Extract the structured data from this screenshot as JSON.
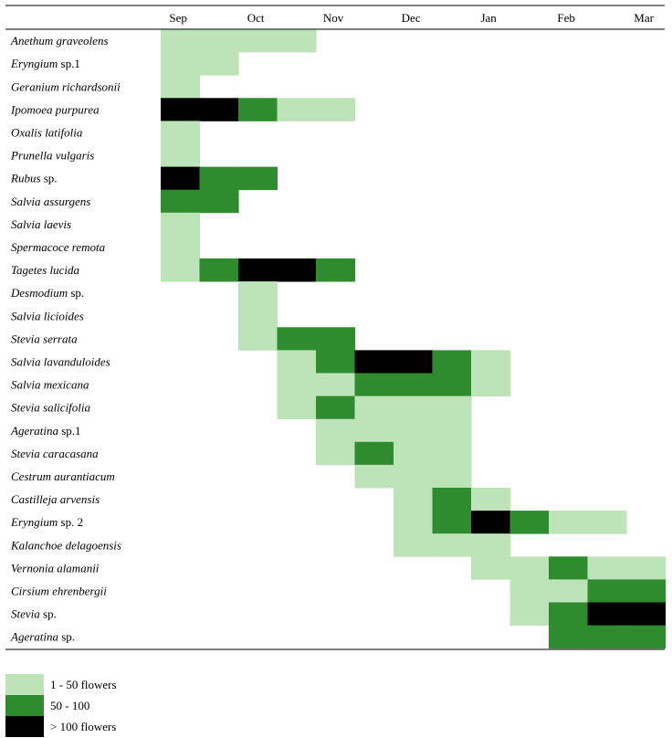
{
  "chart_data": {
    "type": "heatmap",
    "months": [
      "Sep",
      "Oct",
      "Nov",
      "Dec",
      "Jan",
      "Feb",
      "Mar"
    ],
    "levels": {
      "1": {
        "label": "1 - 50 flowers",
        "color": "#bde4b8"
      },
      "2": {
        "label": "50 - 100",
        "color": "#2e8b2e"
      },
      "3": {
        "label": "> 100 flowers",
        "color": "#000000"
      }
    },
    "periods_per_month": 2,
    "species": [
      {
        "italic": "Anethum graveolens",
        "suffix": "",
        "periods": [
          1,
          1,
          1,
          1,
          0,
          0,
          0,
          0,
          0,
          0,
          0,
          0,
          0,
          0
        ]
      },
      {
        "italic": "Eryngium",
        "suffix": " sp.1",
        "periods": [
          1,
          1,
          0,
          0,
          0,
          0,
          0,
          0,
          0,
          0,
          0,
          0,
          0,
          0
        ]
      },
      {
        "italic": "Geranium richardsonii",
        "suffix": "",
        "periods": [
          1,
          0,
          0,
          0,
          0,
          0,
          0,
          0,
          0,
          0,
          0,
          0,
          0,
          0
        ]
      },
      {
        "italic": "Ipomoea purpurea",
        "suffix": "",
        "periods": [
          3,
          3,
          2,
          1,
          1,
          0,
          0,
          0,
          0,
          0,
          0,
          0,
          0,
          0
        ]
      },
      {
        "italic": "Oxalis latifolia",
        "suffix": "",
        "periods": [
          1,
          0,
          0,
          0,
          0,
          0,
          0,
          0,
          0,
          0,
          0,
          0,
          0,
          0
        ]
      },
      {
        "italic": "Prunella vulgaris",
        "suffix": "",
        "periods": [
          1,
          0,
          0,
          0,
          0,
          0,
          0,
          0,
          0,
          0,
          0,
          0,
          0,
          0
        ]
      },
      {
        "italic": "Rubus",
        "suffix": " sp.",
        "periods": [
          3,
          2,
          2,
          0,
          0,
          0,
          0,
          0,
          0,
          0,
          0,
          0,
          0,
          0
        ]
      },
      {
        "italic": "Salvia assurgens",
        "suffix": "",
        "periods": [
          2,
          2,
          0,
          0,
          0,
          0,
          0,
          0,
          0,
          0,
          0,
          0,
          0,
          0
        ]
      },
      {
        "italic": "Salvia laevis",
        "suffix": "",
        "periods": [
          1,
          0,
          0,
          0,
          0,
          0,
          0,
          0,
          0,
          0,
          0,
          0,
          0,
          0
        ]
      },
      {
        "italic": "Spermacoce remota",
        "suffix": "",
        "periods": [
          1,
          0,
          0,
          0,
          0,
          0,
          0,
          0,
          0,
          0,
          0,
          0,
          0,
          0
        ]
      },
      {
        "italic": "Tagetes lucida",
        "suffix": "",
        "periods": [
          1,
          2,
          3,
          3,
          2,
          0,
          0,
          0,
          0,
          0,
          0,
          0,
          0,
          0
        ]
      },
      {
        "italic": "Desmodium",
        "suffix": " sp.",
        "periods": [
          0,
          0,
          1,
          0,
          0,
          0,
          0,
          0,
          0,
          0,
          0,
          0,
          0,
          0
        ]
      },
      {
        "italic": "Salvia licioides",
        "suffix": "",
        "periods": [
          0,
          0,
          1,
          0,
          0,
          0,
          0,
          0,
          0,
          0,
          0,
          0,
          0,
          0
        ]
      },
      {
        "italic": "Stevia serrata",
        "suffix": "",
        "periods": [
          0,
          0,
          1,
          2,
          2,
          0,
          0,
          0,
          0,
          0,
          0,
          0,
          0,
          0
        ]
      },
      {
        "italic": "Salvia lavanduloides",
        "suffix": "",
        "periods": [
          0,
          0,
          0,
          1,
          2,
          3,
          3,
          2,
          1,
          0,
          0,
          0,
          0,
          0
        ]
      },
      {
        "italic": "Salvia mexicana",
        "suffix": "",
        "periods": [
          0,
          0,
          0,
          1,
          1,
          2,
          2,
          2,
          1,
          0,
          0,
          0,
          0,
          0
        ]
      },
      {
        "italic": "Stevia salicifolia",
        "suffix": "",
        "periods": [
          0,
          0,
          0,
          1,
          2,
          1,
          1,
          1,
          0,
          0,
          0,
          0,
          0,
          0
        ]
      },
      {
        "italic": "Ageratina",
        "suffix": " sp.1",
        "periods": [
          0,
          0,
          0,
          0,
          1,
          1,
          1,
          1,
          0,
          0,
          0,
          0,
          0,
          0
        ]
      },
      {
        "italic": "Stevia caracasana",
        "suffix": "",
        "periods": [
          0,
          0,
          0,
          0,
          1,
          2,
          1,
          1,
          0,
          0,
          0,
          0,
          0,
          0
        ]
      },
      {
        "italic": "Cestrum aurantiacum",
        "suffix": "",
        "periods": [
          0,
          0,
          0,
          0,
          0,
          1,
          1,
          1,
          0,
          0,
          0,
          0,
          0,
          0
        ]
      },
      {
        "italic": "Castilleja arvensis",
        "suffix": "",
        "periods": [
          0,
          0,
          0,
          0,
          0,
          0,
          1,
          2,
          1,
          0,
          0,
          0,
          0,
          0
        ]
      },
      {
        "italic": "Eryngium",
        "suffix": " sp. 2",
        "periods": [
          0,
          0,
          0,
          0,
          0,
          0,
          1,
          2,
          3,
          2,
          1,
          1,
          0,
          0
        ]
      },
      {
        "italic": "Kalanchoe delagoensis",
        "suffix": "",
        "periods": [
          0,
          0,
          0,
          0,
          0,
          0,
          1,
          1,
          1,
          0,
          0,
          0,
          0,
          0
        ]
      },
      {
        "italic": "Vernonia alamanii",
        "suffix": "",
        "periods": [
          0,
          0,
          0,
          0,
          0,
          0,
          0,
          0,
          1,
          1,
          2,
          1,
          1,
          0
        ]
      },
      {
        "italic": "Cirsium ehrenbergii",
        "suffix": "",
        "periods": [
          0,
          0,
          0,
          0,
          0,
          0,
          0,
          0,
          0,
          1,
          1,
          2,
          2,
          0
        ]
      },
      {
        "italic": "Stevia",
        "suffix": " sp.",
        "periods": [
          0,
          0,
          0,
          0,
          0,
          0,
          0,
          0,
          0,
          1,
          2,
          3,
          3,
          0
        ]
      },
      {
        "italic": "Ageratina",
        "suffix": " sp.",
        "periods": [
          0,
          0,
          0,
          0,
          0,
          0,
          0,
          0,
          0,
          0,
          2,
          2,
          2,
          0
        ]
      }
    ]
  }
}
